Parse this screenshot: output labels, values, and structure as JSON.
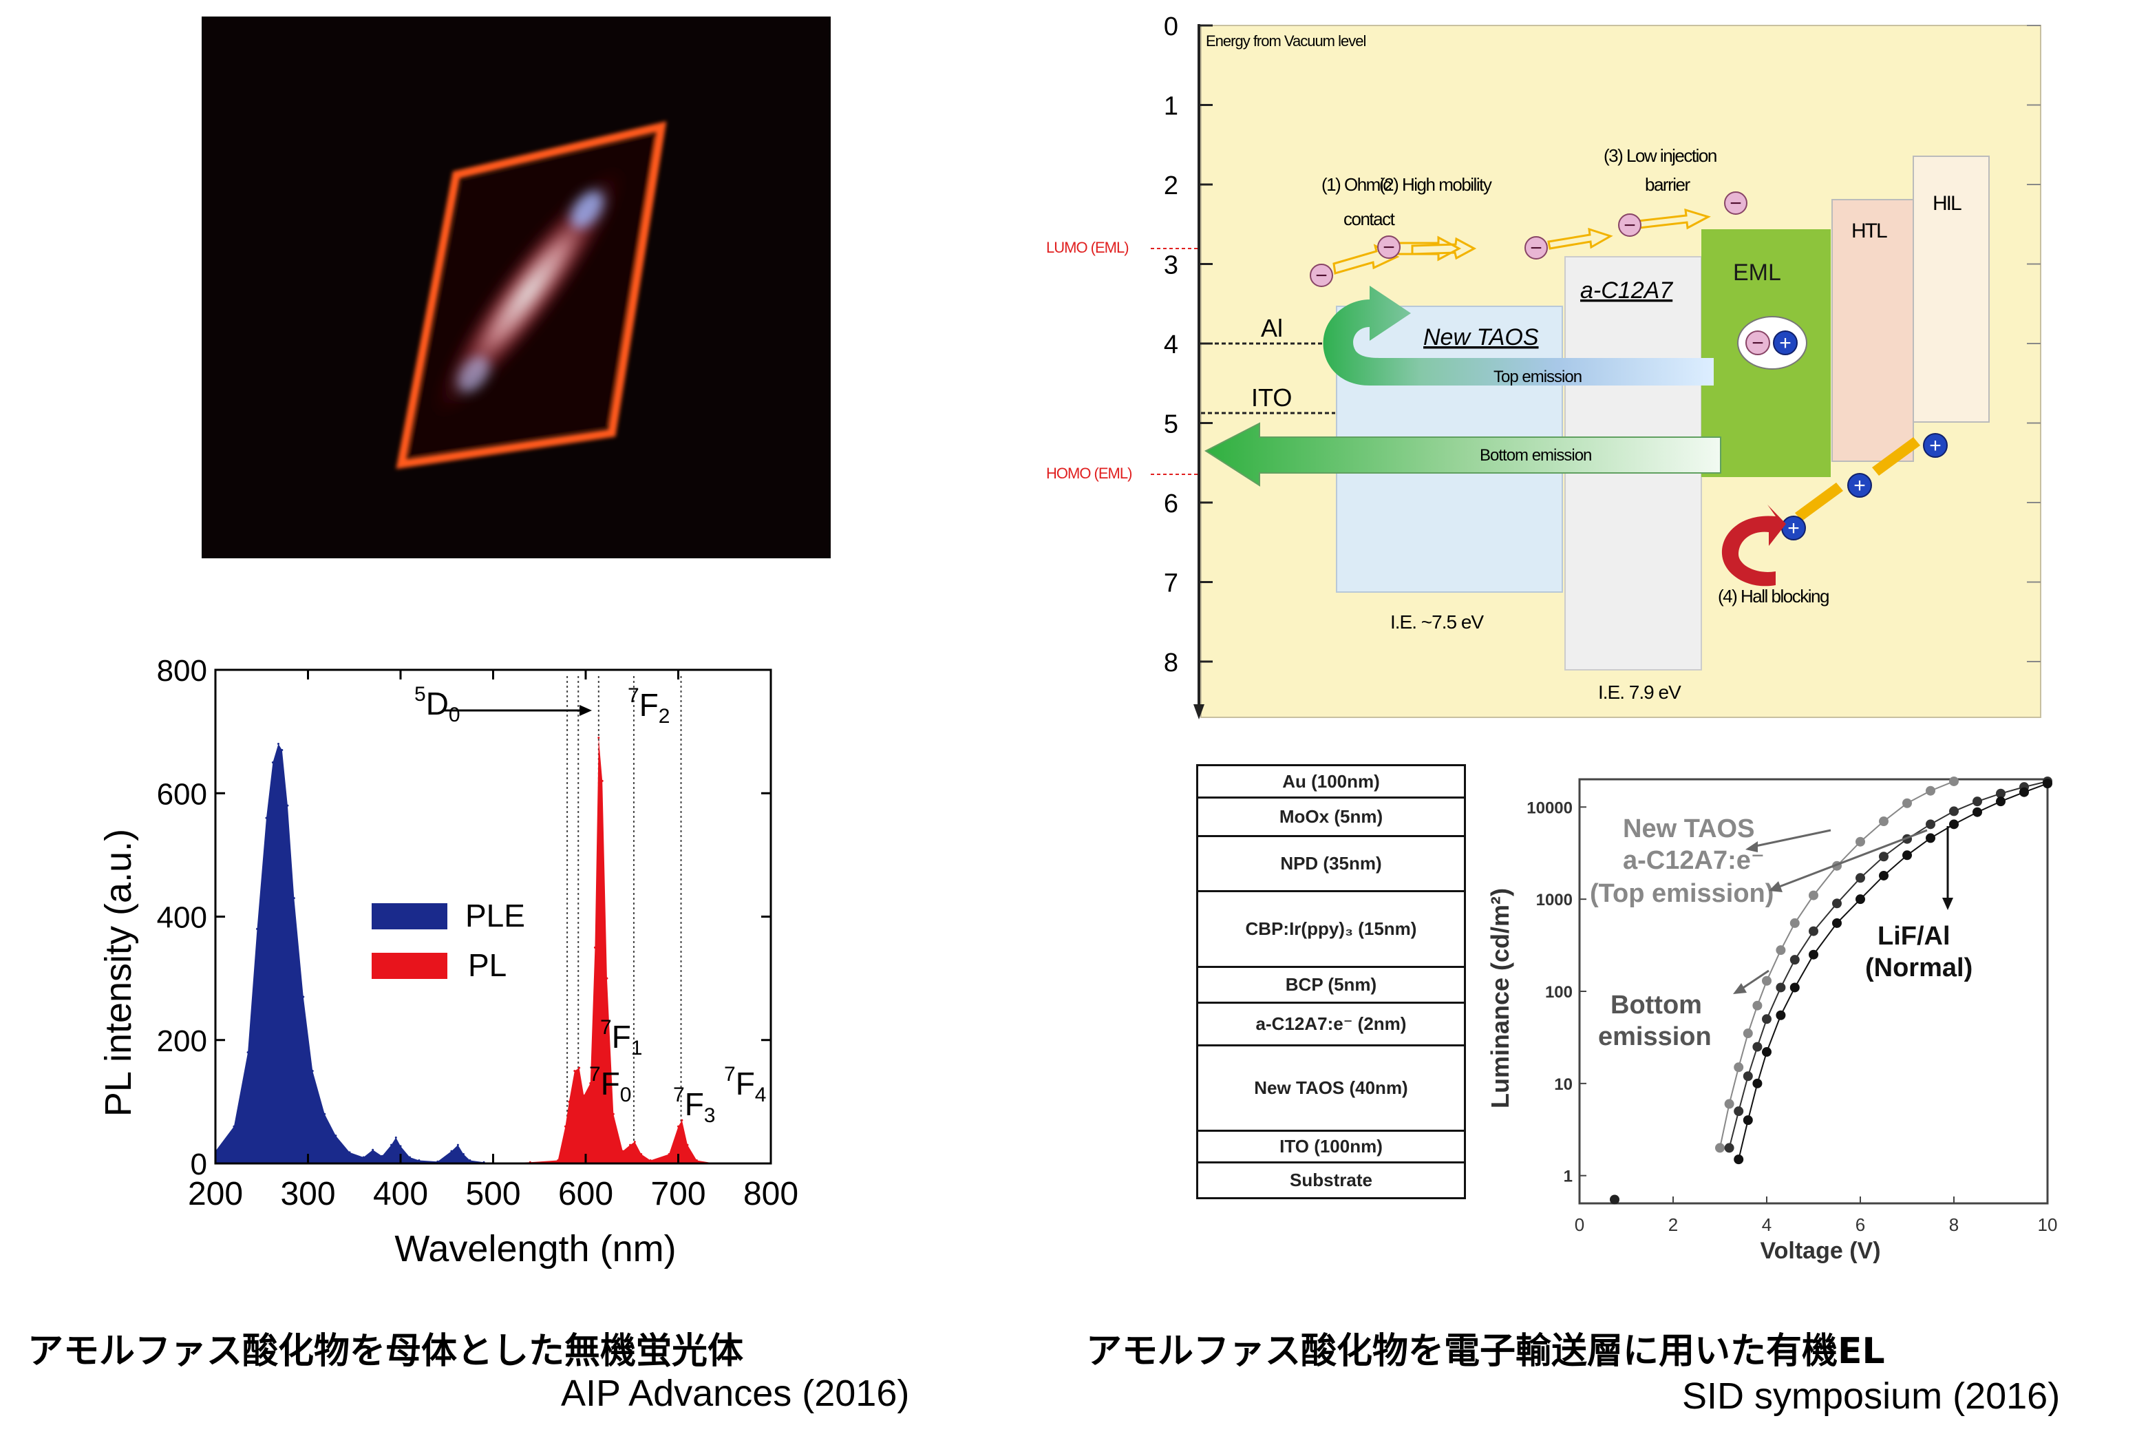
{
  "photo": {
    "description_icon": "phosphor-glow-photo"
  },
  "pl_chart": {
    "chart_data": {
      "type": "area",
      "xlabel": "Wavelength (nm)",
      "ylabel": "PL intensity (a.u.)",
      "xlim": [
        200,
        800
      ],
      "ylim": [
        0,
        800
      ],
      "x_ticks": [
        "200",
        "300",
        "400",
        "500",
        "600",
        "700",
        "800"
      ],
      "y_ticks": [
        "0",
        "200",
        "400",
        "600",
        "800"
      ],
      "legend": {
        "placement": "center-left",
        "entries": [
          {
            "name": "PLE",
            "color": "#1a2a8c"
          },
          {
            "name": "PL",
            "color": "#e8141c"
          }
        ]
      },
      "series": [
        {
          "name": "PLE",
          "color": "#1a2a8c",
          "x": [
            200,
            220,
            235,
            245,
            255,
            262,
            268,
            272,
            278,
            285,
            295,
            305,
            318,
            330,
            345,
            360,
            370,
            380,
            390,
            395,
            400,
            410,
            420,
            440,
            455,
            462,
            468,
            475,
            490,
            500
          ],
          "y": [
            20,
            60,
            180,
            380,
            560,
            650,
            680,
            670,
            580,
            430,
            270,
            150,
            80,
            45,
            18,
            10,
            22,
            12,
            30,
            42,
            28,
            10,
            5,
            3,
            20,
            30,
            15,
            5,
            2,
            0
          ]
        },
        {
          "name": "PL",
          "color": "#e8141c",
          "x": [
            500,
            540,
            570,
            578,
            582,
            588,
            593,
            598,
            605,
            610,
            614,
            618,
            623,
            630,
            640,
            648,
            653,
            660,
            670,
            690,
            700,
            704,
            710,
            720,
            740,
            800
          ],
          "y": [
            0,
            2,
            5,
            60,
            100,
            150,
            155,
            110,
            130,
            350,
            690,
            620,
            300,
            80,
            20,
            30,
            35,
            15,
            5,
            15,
            60,
            70,
            30,
            5,
            0,
            0
          ]
        }
      ],
      "annotations": [
        {
          "base": "5",
          "main": "D",
          "sub": "0",
          "arrow": "→"
        },
        {
          "base": "7",
          "main": "F",
          "sub": "2"
        },
        {
          "base": "7",
          "main": "F",
          "sub": "1"
        },
        {
          "base": "7",
          "main": "F",
          "sub": "0"
        },
        {
          "base": "7",
          "main": "F",
          "sub": "3"
        },
        {
          "base": "7",
          "main": "F",
          "sub": "4"
        }
      ],
      "dotted_lines_nm": [
        580,
        592,
        614,
        652,
        703
      ]
    }
  },
  "energy_diagram": {
    "y_ticks": [
      "0",
      "1",
      "2",
      "3",
      "4",
      "5",
      "6",
      "7",
      "8"
    ],
    "axis_title": "Energy from Vacuum level",
    "lumo_label": "LUMO (EML)",
    "homo_label": "HOMO (EML)",
    "al_label": "Al",
    "ito_label": "ITO",
    "steps": {
      "s1": "(1) Ohmic",
      "s1b": "contact",
      "s2": "(2) High mobility",
      "s3": "(3) Low injection",
      "s3b": "barrier",
      "s4": "(4) Hall blocking"
    },
    "new_taos": "New TAOS",
    "a_c12a7": "a-C12A7",
    "eml": "EML",
    "htl": "HTL",
    "hil": "HIL",
    "top_emission": "Top emission",
    "bottom_emission": "Bottom emission",
    "ie1": "I.E. ~7.5 eV",
    "ie2": "I.E. 7.9 eV",
    "electron_symbol": "−",
    "hole_symbol": "+",
    "colors": {
      "bg": "#fbf3c4",
      "taos": "#dcebf6",
      "c12a7": "#efefef",
      "eml": "#8dc43c",
      "htl": "#f6d9c8",
      "hil": "#fbf1df"
    }
  },
  "layer_stack": {
    "layers": [
      {
        "label": "Au  (100nm)"
      },
      {
        "label": "MoOx (5nm)"
      },
      {
        "label": "NPD (35nm)"
      },
      {
        "label": "CBP:Ir(ppy)₃ (15nm)"
      },
      {
        "label": "BCP (5nm)"
      },
      {
        "label": "a-C12A7:e⁻ (2nm)"
      },
      {
        "label": "New TAOS (40nm)"
      },
      {
        "label": "ITO  (100nm)"
      },
      {
        "label": "Substrate"
      }
    ]
  },
  "lum_chart": {
    "chart_data": {
      "type": "scatter",
      "xlabel": "Voltage (V)",
      "ylabel": "Luminance (cd/m²)",
      "xlim": [
        0,
        10
      ],
      "ylim": [
        0.5,
        20000
      ],
      "yscale": "log",
      "x_ticks": [
        "0",
        "2",
        "4",
        "6",
        "8",
        "10"
      ],
      "y_ticks": [
        "1",
        "10",
        "100",
        "1000",
        "10000"
      ],
      "annotations": {
        "top1": "New TAOS",
        "top2": "a-C12A7:e⁻",
        "top3": "(Top emission)",
        "bot1": "Bottom",
        "bot2": "emission",
        "norm1": "LiF/Al",
        "norm2": "(Normal)"
      },
      "series": [
        {
          "name": "top",
          "color": "#888888",
          "x": [
            3.0,
            3.2,
            3.4,
            3.6,
            3.8,
            4.0,
            4.3,
            4.6,
            5.0,
            5.5,
            6.0,
            6.5,
            7.0,
            7.5,
            8.0
          ],
          "y": [
            2,
            6,
            15,
            35,
            70,
            130,
            280,
            550,
            1100,
            2300,
            4200,
            7000,
            11000,
            15000,
            19000
          ]
        },
        {
          "name": "bottom",
          "color": "#333333",
          "x": [
            3.2,
            3.4,
            3.6,
            3.8,
            4.0,
            4.3,
            4.6,
            5.0,
            5.5,
            6.0,
            6.5,
            7.0,
            7.5,
            8.0,
            8.5,
            9.0,
            9.5,
            10.0
          ],
          "y": [
            2,
            5,
            12,
            25,
            50,
            110,
            220,
            450,
            900,
            1700,
            2900,
            4500,
            6500,
            9000,
            11500,
            14000,
            16500,
            19000
          ]
        },
        {
          "name": "normal",
          "color": "#111111",
          "x": [
            3.4,
            3.6,
            3.8,
            4.0,
            4.3,
            4.6,
            5.0,
            5.5,
            6.0,
            6.5,
            7.0,
            7.5,
            8.0,
            8.5,
            9.0,
            9.5,
            10.0
          ],
          "y": [
            1.5,
            4,
            10,
            22,
            55,
            110,
            250,
            550,
            1000,
            1800,
            3000,
            4600,
            6500,
            8800,
            11500,
            14500,
            18000
          ]
        }
      ]
    }
  },
  "captions": {
    "left_jp": "アモルファス酸化物を母体とした無機蛍光体",
    "left_ref": "AIP Advances (2016)",
    "right_jp": "アモルファス酸化物を電子輸送層に用いた有機EL",
    "right_ref": "SID symposium (2016)"
  }
}
